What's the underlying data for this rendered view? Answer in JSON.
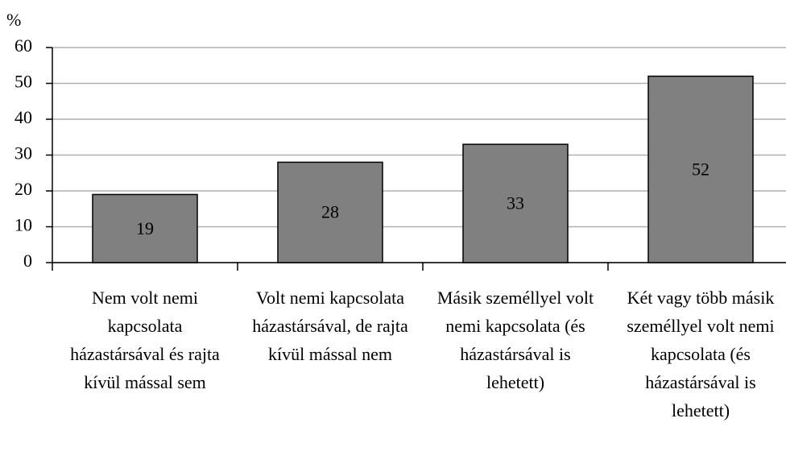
{
  "chart_data": {
    "type": "bar",
    "y_label": "%",
    "categories": [
      "Nem volt nemi kapcsolata házastársával és rajta kívül mással sem",
      "Volt nemi kapcsolata házastársával, de rajta kívül mással nem",
      "Másik személlyel volt nemi kapcsolata (és házastársával is lehetett)",
      "Két vagy több másik személlyel volt nemi kapcsolata (és házastársával is lehetett)"
    ],
    "values": [
      19,
      28,
      33,
      52
    ],
    "color": "#808080",
    "ylim": [
      0,
      60
    ],
    "yticks": [
      0,
      10,
      20,
      30,
      40,
      50,
      60
    ],
    "grid": true
  }
}
